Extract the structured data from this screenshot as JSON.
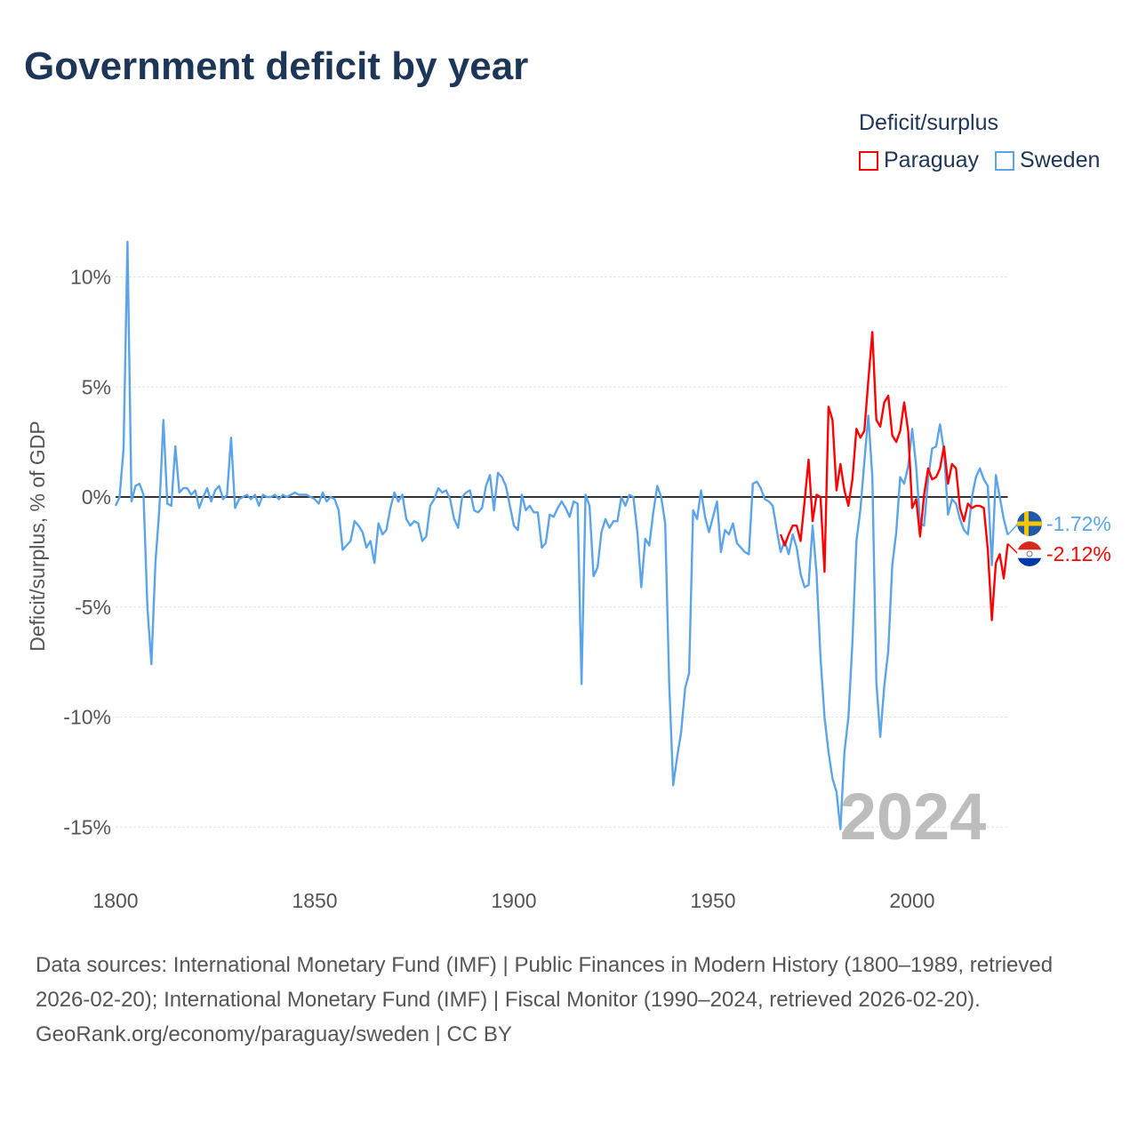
{
  "chart_data": {
    "type": "line",
    "title": "Government deficit by year",
    "ylabel": "Deficit/surplus, % of GDP",
    "xlabel": "",
    "xlim": [
      1800,
      2024
    ],
    "ylim": [
      -16,
      12
    ],
    "yticks": [
      10,
      5,
      0,
      -5,
      -10,
      -15
    ],
    "ytick_labels": [
      "10%",
      "5%",
      "0%",
      "-5%",
      "-10%",
      "-15%"
    ],
    "xticks": [
      1800,
      1850,
      1900,
      1950,
      2000
    ],
    "xtick_labels": [
      "1800",
      "1850",
      "1900",
      "1950",
      "2000"
    ],
    "grid": true,
    "legend_title": "Deficit/surplus",
    "legend_position": "top-right",
    "watermark_year": "2024",
    "series": [
      {
        "name": "Paraguay",
        "color": "#ff0000",
        "start_year": 1967,
        "end_label": "-2.12%",
        "values": [
          -1.7,
          -2.2,
          -1.7,
          -1.3,
          -1.3,
          -2.0,
          -0.2,
          1.7,
          -1.1,
          0.1,
          0,
          -3.4,
          4.1,
          3.5,
          0.3,
          1.5,
          0.3,
          -0.4,
          0.8,
          3.1,
          2.7,
          3.0,
          5.3,
          7.5,
          3.5,
          3.2,
          4.3,
          4.6,
          2.8,
          2.5,
          3.0,
          4.3,
          3.0,
          -0.5,
          -0.1,
          -1.8,
          0.1,
          1.3,
          0.8,
          0.9,
          1.3,
          2.3,
          0.6,
          1.5,
          1.3,
          -0.5,
          -1.1,
          -0.3,
          -0.5,
          -0.4,
          -0.4,
          -0.5,
          -2.4,
          -5.6,
          -3.0,
          -2.6,
          -3.7,
          -2.12
        ]
      },
      {
        "name": "Sweden",
        "color": "#5ba4ea",
        "start_year": 1800,
        "end_label": "-1.72%",
        "values": [
          -0.4,
          0,
          2.2,
          11.6,
          -0.2,
          0.5,
          0.6,
          0.1,
          -5,
          -7.6,
          -3,
          -0.5,
          3.5,
          -0.3,
          -0.4,
          2.3,
          0.2,
          0.4,
          0.4,
          0.1,
          0.3,
          -0.5,
          0,
          0.4,
          -0.2,
          0.3,
          0.5,
          -0.1,
          0.1,
          2.7,
          -0.5,
          -0.1,
          0,
          0.1,
          -0.1,
          0.1,
          -0.4,
          0.1,
          0,
          0,
          0.1,
          -0.1,
          0.1,
          0,
          0.1,
          0.2,
          0.1,
          0.1,
          0.1,
          0,
          -0.1,
          -0.3,
          0.2,
          -0.2,
          0,
          -0.1,
          -0.6,
          -2.4,
          -2.2,
          -2,
          -1.1,
          -1.3,
          -1.6,
          -2.3,
          -2,
          -3,
          -1.2,
          -1.7,
          -1.5,
          -0.5,
          0.2,
          -0.2,
          0.1,
          -1,
          -1.3,
          -1.1,
          -1.2,
          -2,
          -1.8,
          -0.4,
          -0.1,
          0.4,
          0.2,
          0.3,
          -0.1,
          -1,
          -1.4,
          0,
          0.2,
          0.3,
          -0.6,
          -0.7,
          -0.5,
          0.5,
          1,
          -0.6,
          1.1,
          0.9,
          0.5,
          -0.4,
          -1.3,
          -1.5,
          0.1,
          -0.6,
          -0.4,
          -0.7,
          -0.7,
          -2.3,
          -2.1,
          -0.8,
          -0.9,
          -0.5,
          -0.2,
          -0.5,
          -0.9,
          -0.2,
          -0.3,
          -8.5,
          0.1,
          -0.4,
          -3.6,
          -3.2,
          -1.6,
          -1,
          -1.4,
          -1.1,
          -1.1,
          0,
          -0.4,
          0.1,
          0,
          -1.6,
          -4.1,
          -1.9,
          -2.2,
          -0.7,
          0.5,
          0,
          -1.2,
          -8.5,
          -13.1,
          -11.8,
          -10.7,
          -8.7,
          -8,
          -0.6,
          -1,
          0.3,
          -0.9,
          -1.6,
          -0.9,
          -0.2,
          -2.5,
          -1.5,
          -1.7,
          -1.2,
          -2.1,
          -2.3,
          -2.5,
          -2.6,
          0.6,
          0.7,
          0.4,
          -0.1,
          -0.2,
          -0.4,
          -1.5,
          -2.5,
          -2,
          -2.6,
          -1.7,
          -2.3,
          -3.5,
          -4.1,
          -4,
          -1.3,
          -3.5,
          -7.3,
          -10,
          -11.6,
          -12.8,
          -13.4,
          -15.1,
          -11.6,
          -10,
          -6.6,
          -2,
          -0.6,
          1.6,
          3.7,
          0.9,
          -8.4,
          -10.9,
          -8.6,
          -7,
          -3.1,
          -1.6,
          0.9,
          0.6,
          1.4,
          3.1,
          1.4,
          -1.2,
          -1.3,
          0.8,
          2.2,
          2.3,
          3.3,
          2.1,
          -0.8,
          -0.1,
          -0.3,
          -1.0,
          -1.5,
          -1.7,
          0,
          0.9,
          1.3,
          0.8,
          0.5,
          -3.1,
          1,
          0,
          -1,
          -1.72
        ]
      }
    ]
  },
  "footer": {
    "sources": "Data sources: International Monetary Fund (IMF) | Public Finances in Modern History (1800–1989, retrieved 2026-02-20); International Monetary Fund (IMF) | Fiscal Monitor (1990–2024, retrieved 2026-02-20).",
    "credit": "GeoRank.org/economy/paraguay/sweden | CC BY"
  }
}
